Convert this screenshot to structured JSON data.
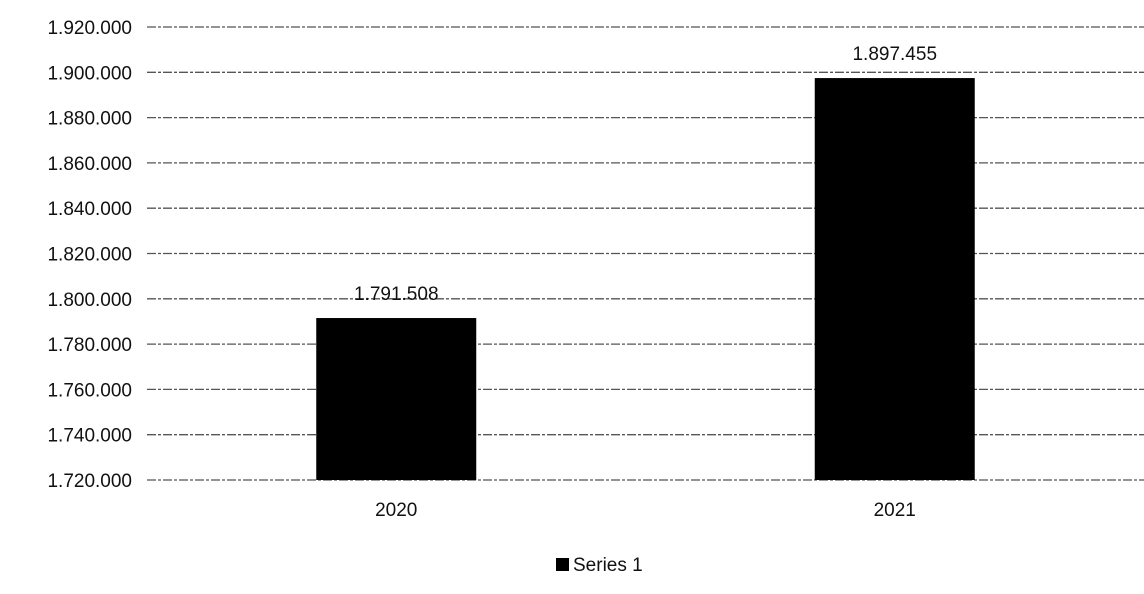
{
  "chart_data": {
    "type": "bar",
    "categories": [
      "2020",
      "2021"
    ],
    "series": [
      {
        "name": "Series 1",
        "values": [
          1791508,
          1897455
        ],
        "value_labels": [
          "1.791.508",
          "1.897.455"
        ],
        "color": "#000000"
      }
    ],
    "ylim": [
      1720000,
      1920000
    ],
    "yticks": [
      1720000,
      1740000,
      1760000,
      1780000,
      1800000,
      1820000,
      1840000,
      1860000,
      1880000,
      1900000,
      1920000
    ],
    "ytick_labels": [
      "1.720.000",
      "1.740.000",
      "1.760.000",
      "1.780.000",
      "1.800.000",
      "1.820.000",
      "1.840.000",
      "1.860.000",
      "1.880.000",
      "1.900.000",
      "1.920.000"
    ],
    "grid": true,
    "legend_position": "bottom",
    "legend": [
      {
        "label": "Series 1",
        "color": "#000000"
      }
    ]
  }
}
